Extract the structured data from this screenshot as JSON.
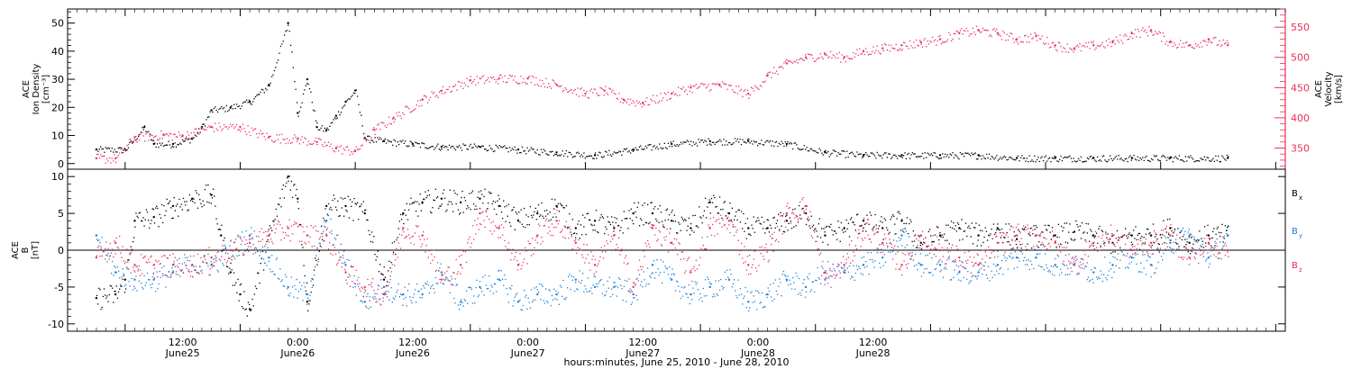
{
  "chart_data": [
    {
      "type": "scatter",
      "left_ylabel_lines": [
        "ACE",
        "Ion Density",
        "[cm⁻³]"
      ],
      "right_ylabel_lines": [
        "ACE",
        "Velocity",
        "[km/s]"
      ],
      "left_ylim": [
        -2,
        55
      ],
      "left_yticks": [
        0,
        10,
        20,
        30,
        40,
        50
      ],
      "right_ylim": [
        315,
        580
      ],
      "right_yticks": [
        350,
        400,
        450,
        500,
        550
      ],
      "colors": {
        "density": "#000000",
        "velocity": "#e8305a"
      },
      "series": [
        {
          "axis": "left",
          "color": "#000000",
          "x": [
            0,
            3,
            5,
            6,
            8,
            10,
            11,
            12,
            14,
            16,
            18,
            20,
            21,
            22,
            23,
            24,
            25,
            26,
            27,
            28,
            30,
            33,
            36,
            40,
            44,
            48,
            52,
            56,
            60,
            64,
            68,
            72,
            76,
            80,
            84,
            88,
            92,
            96,
            100,
            104,
            108,
            112,
            118
          ],
          "y": [
            5,
            5,
            13,
            7,
            7,
            9,
            13,
            19,
            20,
            22,
            28,
            50,
            18,
            30,
            13,
            12,
            17,
            22,
            26,
            9,
            8,
            7,
            6,
            6,
            5,
            4,
            3,
            5,
            7,
            8,
            8,
            7,
            4,
            3,
            3,
            3,
            3,
            2,
            2,
            2,
            2,
            2,
            2
          ]
        },
        {
          "axis": "right",
          "color": "#e8305a",
          "x": [
            0,
            2,
            4,
            7,
            9,
            12,
            15,
            18,
            21,
            23,
            25,
            27,
            29,
            31,
            34,
            36,
            39,
            42,
            45,
            48,
            51,
            53,
            55,
            57,
            60,
            62,
            65,
            68,
            70,
            72,
            74,
            76,
            78,
            80,
            82,
            84,
            86,
            88,
            90,
            92,
            94,
            96,
            98,
            100,
            102,
            104,
            106,
            108,
            110,
            112,
            114,
            116,
            118
          ],
          "y": [
            333,
            333,
            368,
            372,
            370,
            385,
            385,
            368,
            365,
            360,
            350,
            345,
            380,
            400,
            430,
            445,
            462,
            465,
            465,
            455,
            440,
            445,
            430,
            425,
            440,
            450,
            455,
            440,
            470,
            490,
            500,
            505,
            500,
            510,
            515,
            520,
            525,
            530,
            540,
            545,
            540,
            530,
            535,
            520,
            515,
            520,
            525,
            540,
            545,
            525,
            520,
            530,
            520
          ]
        }
      ]
    },
    {
      "type": "scatter",
      "ylabel_lines": [
        "ACE",
        "B",
        "[nT]"
      ],
      "ylim": [
        -11,
        11
      ],
      "yticks": [
        -10,
        -5,
        0,
        5,
        10
      ],
      "legend": [
        "B",
        "B",
        "B"
      ],
      "legend_subscripts": [
        "x",
        "y",
        "z"
      ],
      "colors": {
        "bx": "#000000",
        "by": "#1a7fd9",
        "bz": "#e8305a"
      },
      "series": [
        {
          "name": "Bx",
          "color": "#000000",
          "x": [
            0,
            2,
            3,
            4,
            6,
            8,
            10,
            12,
            13,
            14,
            15,
            16,
            18,
            20,
            21,
            22,
            24,
            26,
            28,
            30,
            32,
            34,
            36,
            38,
            40,
            42,
            44,
            46,
            48,
            50,
            52,
            54,
            56,
            58,
            60,
            62,
            64,
            66,
            68,
            70,
            72,
            74,
            76,
            78,
            80,
            82,
            84,
            86,
            88,
            90,
            92,
            94,
            96,
            98,
            100,
            102,
            104,
            106,
            108,
            110,
            112,
            114,
            116,
            118
          ],
          "y": [
            -6.5,
            -6,
            -4,
            4,
            4.5,
            6,
            7,
            7.5,
            2,
            -3,
            -6,
            -8,
            2,
            10,
            7,
            -7,
            6,
            6,
            5,
            -4,
            5,
            6.5,
            7,
            6.5,
            7,
            6,
            4,
            5,
            6,
            3,
            4,
            3,
            5,
            5,
            4,
            3,
            6.5,
            5,
            3,
            3,
            4,
            5,
            2,
            3,
            4,
            3,
            4,
            1,
            2,
            3,
            2,
            3,
            1.5,
            2,
            2,
            2.5,
            2,
            1,
            2,
            2,
            3,
            1,
            2,
            2
          ]
        },
        {
          "name": "By",
          "color": "#1a7fd9",
          "x": [
            0,
            2,
            4,
            6,
            8,
            10,
            12,
            14,
            16,
            18,
            20,
            22,
            24,
            26,
            28,
            30,
            32,
            34,
            36,
            38,
            40,
            42,
            44,
            46,
            48,
            50,
            52,
            54,
            56,
            58,
            60,
            62,
            64,
            66,
            68,
            70,
            72,
            74,
            76,
            78,
            80,
            82,
            84,
            86,
            88,
            90,
            92,
            94,
            96,
            98,
            100,
            102,
            104,
            106,
            108,
            110,
            112,
            114,
            116,
            118
          ],
          "y": [
            2,
            -3,
            -4,
            -4,
            -3,
            -2,
            -2,
            0,
            2,
            -1,
            -5,
            -6,
            4,
            -2,
            -7,
            -5,
            -6,
            -6,
            -3,
            -7,
            -5,
            -4,
            -7,
            -6,
            -6,
            -4,
            -5,
            -5,
            -6,
            -2,
            -4,
            -6,
            -5,
            -4,
            -7,
            -6,
            -4,
            -5,
            -3,
            -3,
            -2,
            -1,
            2,
            -2,
            -2,
            -3,
            -3,
            -2,
            -1,
            -1,
            -2,
            -2,
            -3,
            -2,
            -1,
            -2,
            1,
            2,
            -1,
            2
          ]
        },
        {
          "name": "Bz",
          "color": "#e8305a",
          "x": [
            0,
            2,
            4,
            6,
            8,
            10,
            12,
            14,
            16,
            18,
            20,
            22,
            24,
            26,
            28,
            30,
            32,
            34,
            36,
            38,
            40,
            42,
            44,
            46,
            48,
            50,
            52,
            54,
            56,
            58,
            60,
            62,
            64,
            66,
            68,
            70,
            72,
            74,
            76,
            78,
            80,
            82,
            84,
            86,
            88,
            90,
            92,
            94,
            96,
            98,
            100,
            102,
            104,
            106,
            108,
            110,
            112,
            114,
            116,
            118
          ],
          "y": [
            -1,
            1,
            -2,
            -2,
            -2,
            -2,
            -1,
            0,
            1,
            2,
            3,
            2,
            2,
            -3,
            -5,
            -6,
            3,
            2,
            -4,
            -2,
            5,
            3,
            -2,
            2,
            4,
            1,
            -2,
            2,
            -5,
            3,
            1,
            -3,
            3,
            4,
            -2,
            0,
            5,
            6,
            -4,
            -2,
            3,
            1,
            -2,
            2,
            0,
            -1,
            -2,
            1,
            2,
            2,
            1,
            -2,
            1,
            2,
            0,
            1,
            2,
            -1,
            1,
            0
          ]
        }
      ]
    }
  ],
  "x_axis": {
    "xlim": [
      -3,
      124
    ],
    "tick_hours": [
      3,
      15,
      27,
      39,
      51,
      63,
      75,
      87,
      99,
      111,
      123
    ],
    "label_hours": [
      3,
      15,
      27,
      39,
      51,
      63,
      75,
      87,
      99,
      111,
      123
    ],
    "time_labels": [
      "12:00",
      "0:00",
      "12:00",
      "0:00",
      "12:00",
      "0:00",
      "12:00"
    ],
    "date_labels": [
      "June25",
      "June26",
      "June26",
      "June27",
      "June27",
      "June28",
      "June28"
    ],
    "label_positions_hours": [
      3,
      15,
      27,
      39,
      51,
      63,
      75
    ],
    "title": "hours:minutes, June 25, 2010 - June 28, 2010"
  }
}
